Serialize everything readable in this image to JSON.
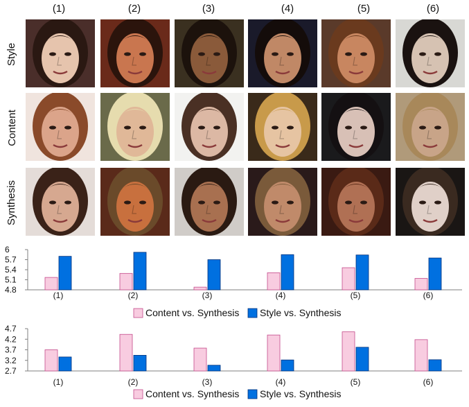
{
  "columns": [
    "(1)",
    "(2)",
    "(3)",
    "(4)",
    "(5)",
    "(6)"
  ],
  "rows": [
    "Style",
    "Content",
    "Synthesis"
  ],
  "images": [
    [
      {
        "name": "style-face-1",
        "bg": "#4a2e2a",
        "skin": "#e6c4ad",
        "hair": "#2a1812"
      },
      {
        "name": "style-face-2",
        "bg": "#6a2a1a",
        "skin": "#c9764f",
        "hair": "#2b140c"
      },
      {
        "name": "style-face-3",
        "bg": "#3a3020",
        "skin": "#8a5a3a",
        "hair": "#1c120c"
      },
      {
        "name": "style-face-4",
        "bg": "#1a1a2a",
        "skin": "#c08866",
        "hair": "#140c0a"
      },
      {
        "name": "style-face-5",
        "bg": "#5a3a2a",
        "skin": "#c88660",
        "hair": "#6a3a1e"
      },
      {
        "name": "style-face-6",
        "bg": "#d8d8d4",
        "skin": "#d6c2b2",
        "hair": "#1a1210"
      }
    ],
    [
      {
        "name": "content-face-1",
        "bg": "#f0e4de",
        "skin": "#dba48a",
        "hair": "#8a4a2a"
      },
      {
        "name": "content-face-2",
        "bg": "#6a6a4a",
        "skin": "#e0b898",
        "hair": "#e6dcae"
      },
      {
        "name": "content-face-3",
        "bg": "#f2f2f0",
        "skin": "#dcb8a4",
        "hair": "#4a3024"
      },
      {
        "name": "content-face-4",
        "bg": "#3a2a1a",
        "skin": "#e6c4a2",
        "hair": "#c89a4a"
      },
      {
        "name": "content-face-5",
        "bg": "#1a1a1c",
        "skin": "#d8c0b6",
        "hair": "#141012"
      },
      {
        "name": "content-face-6",
        "bg": "#b09a7a",
        "skin": "#c8a488",
        "hair": "#a8885a"
      }
    ],
    [
      {
        "name": "synthesis-face-1",
        "bg": "#e4dcd8",
        "skin": "#d6a890",
        "hair": "#3a2218"
      },
      {
        "name": "synthesis-face-2",
        "bg": "#5a2a1a",
        "skin": "#c8703e",
        "hair": "#6a4a2a"
      },
      {
        "name": "synthesis-face-3",
        "bg": "#d0ccc8",
        "skin": "#a87050",
        "hair": "#2a1a12"
      },
      {
        "name": "synthesis-face-4",
        "bg": "#2a1a1a",
        "skin": "#c08a6a",
        "hair": "#7a5a3a"
      },
      {
        "name": "synthesis-face-5",
        "bg": "#3a1a12",
        "skin": "#b07054",
        "hair": "#5a2a18"
      },
      {
        "name": "synthesis-face-6",
        "bg": "#1a1614",
        "skin": "#e0d0c8",
        "hair": "#3a2a20"
      }
    ]
  ],
  "colors": {
    "content": "#f8cce0",
    "content_edge": "#c44a8a",
    "style": "#0070e0",
    "style_edge": "#00307a",
    "axis": "#7f7f7f"
  },
  "chart_data": [
    {
      "type": "bar",
      "categories": [
        "(1)",
        "(2)",
        "(3)",
        "(4)",
        "(5)",
        "(6)"
      ],
      "series": [
        {
          "name": "Content vs. Synthesis",
          "values": [
            5.17,
            5.29,
            4.88,
            5.31,
            5.46,
            5.14
          ]
        },
        {
          "name": "Style vs. Synthesis",
          "values": [
            5.8,
            5.92,
            5.7,
            5.85,
            5.84,
            5.75
          ]
        }
      ],
      "yticks": [
        "4.8",
        "5.1",
        "5.4",
        "5.7",
        "6"
      ],
      "ylim": [
        4.8,
        6.0
      ],
      "legend": "bottom"
    },
    {
      "type": "bar",
      "categories": [
        "(1)",
        "(2)",
        "(3)",
        "(4)",
        "(5)",
        "(6)"
      ],
      "series": [
        {
          "name": "Content vs. Synthesis",
          "values": [
            3.7,
            4.43,
            3.78,
            4.4,
            4.55,
            4.18
          ]
        },
        {
          "name": "Style vs. Synthesis",
          "values": [
            3.36,
            3.44,
            2.97,
            3.22,
            3.82,
            3.23
          ]
        }
      ],
      "yticks": [
        "2.7",
        "3.2",
        "3.7",
        "4.2",
        "4.7"
      ],
      "ylim": [
        2.7,
        4.7
      ],
      "legend": "bottom"
    }
  ]
}
